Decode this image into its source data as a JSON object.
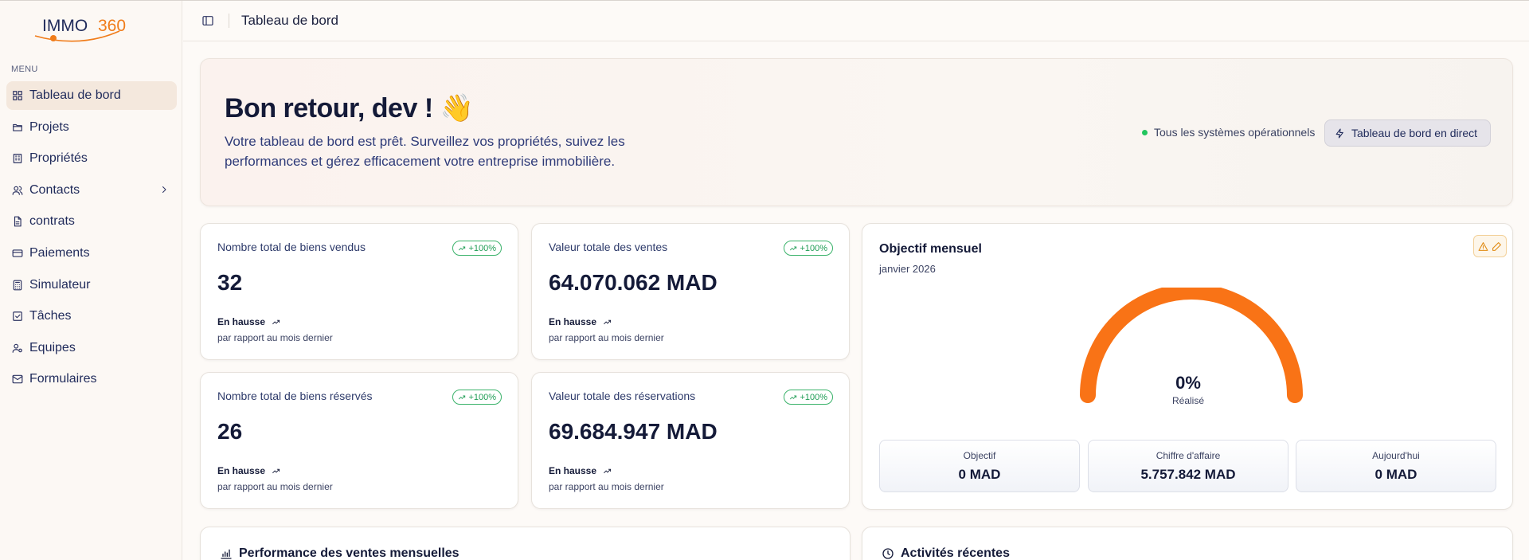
{
  "brand": {
    "logo_text_left": "IMMO",
    "logo_text_right": "360",
    "accent": "#f07c1a",
    "navy": "#1f2a5a"
  },
  "sidebar": {
    "menu_label": "MENU",
    "items": [
      {
        "label": "Tableau de bord",
        "icon": "grid-icon",
        "active": true
      },
      {
        "label": "Projets",
        "icon": "folder-icon"
      },
      {
        "label": "Propriétés",
        "icon": "building-icon"
      },
      {
        "label": "Contacts",
        "icon": "users-icon",
        "has_submenu": true
      },
      {
        "label": "contrats",
        "icon": "file-icon"
      },
      {
        "label": "Paiements",
        "icon": "credit-card-icon"
      },
      {
        "label": "Simulateur",
        "icon": "calculator-icon"
      },
      {
        "label": "Tâches",
        "icon": "check-square-icon"
      },
      {
        "label": "Equipes",
        "icon": "user-cog-icon"
      },
      {
        "label": "Formulaires",
        "icon": "mail-icon"
      }
    ]
  },
  "header": {
    "title": "Tableau de bord"
  },
  "hero": {
    "greeting": "Bon retour, dev ! 👋",
    "description": "Votre tableau de bord est prêt. Surveillez vos propriétés, suivez les performances et gérez efficacement votre entreprise immobilière.",
    "status_text": "Tous les systèmes opérationnels",
    "status_color": "#22c55e",
    "live_button": "Tableau de bord en direct"
  },
  "stats": [
    {
      "label": "Nombre total de biens vendus",
      "badge": "+100%",
      "value": "32",
      "trend": "En hausse",
      "sub": "par rapport au mois dernier"
    },
    {
      "label": "Valeur totale des ventes",
      "badge": "+100%",
      "value": "64.070.062 MAD",
      "trend": "En hausse",
      "sub": "par rapport au mois dernier"
    },
    {
      "label": "Nombre total de biens réservés",
      "badge": "+100%",
      "value": "26",
      "trend": "En hausse",
      "sub": "par rapport au mois dernier"
    },
    {
      "label": "Valeur totale des réservations",
      "badge": "+100%",
      "value": "69.684.947 MAD",
      "trend": "En hausse",
      "sub": "par rapport au mois dernier"
    }
  ],
  "objective": {
    "title": "Objectif mensuel",
    "month": "janvier 2026",
    "percent_text": "0%",
    "percent_label": "Réalisé",
    "progress": 0,
    "gauge_color": "#f97316",
    "kpis": [
      {
        "label": "Objectif",
        "value": "0 MAD"
      },
      {
        "label": "Chiffre d'affaire",
        "value": "5.757.842 MAD"
      },
      {
        "label": "Aujourd'hui",
        "value": "0 MAD"
      }
    ]
  },
  "sections": {
    "sales_performance": "Performance des ventes mensuelles",
    "recent_activities": "Activités récentes"
  }
}
